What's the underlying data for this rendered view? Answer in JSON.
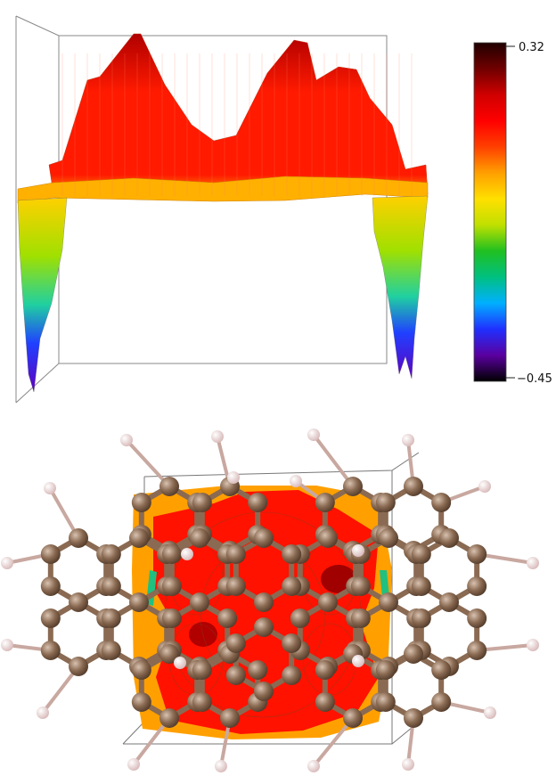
{
  "colorbar": {
    "max_label": "0.32",
    "min_label": "−0.45",
    "max": 0.32,
    "min": -0.45,
    "colors": [
      "#000000",
      "#5a00a0",
      "#2030ff",
      "#00b0ff",
      "#00c080",
      "#20c020",
      "#c0e000",
      "#ffe000",
      "#ffa000",
      "#ff4000",
      "#ff0000",
      "#d00000",
      "#700000",
      "#200000"
    ]
  },
  "surface_colors": {
    "high": "#b00000",
    "mid": "#ff1a00",
    "low": "#ffb000",
    "dip_top": "#ffd000",
    "dip_mid": "#20d0a0",
    "dip_bottom": "#6000c0"
  },
  "molecule_colors": {
    "carbon": "#8a6a52",
    "hydrogen": "#f0d8d8",
    "bond": "#8a6a52",
    "map_red": "#ff1000",
    "map_orange": "#ffa000"
  }
}
